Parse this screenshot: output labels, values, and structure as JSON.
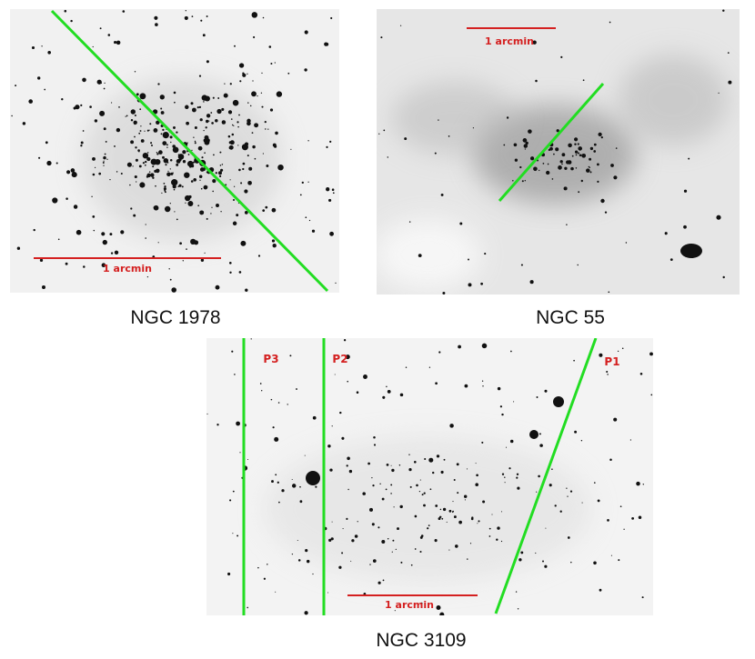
{
  "panels": [
    {
      "caption": "NGC 1978",
      "scale_label": "1 arcmin"
    },
    {
      "caption": "NGC 55",
      "scale_label": "1 arcmin"
    },
    {
      "caption": "NGC 3109",
      "scale_label": "1 arcmin",
      "slits": [
        "P1",
        "P2",
        "P3"
      ]
    }
  ]
}
